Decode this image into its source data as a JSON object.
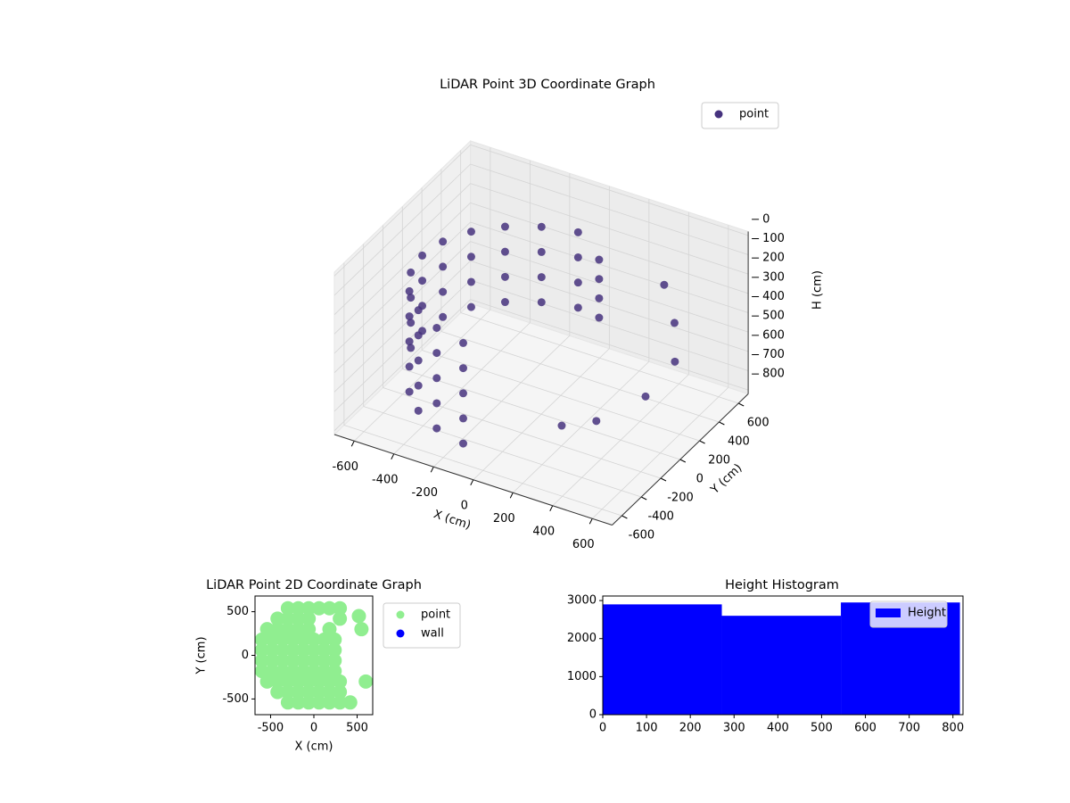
{
  "chart_data": [
    {
      "type": "scatter3d",
      "title": "LiDAR Point 3D Coordinate Graph",
      "xlabel": "X (cm)",
      "ylabel": "Y (cm)",
      "zlabel": "H (cm)",
      "xlim": [
        -700,
        700
      ],
      "ylim": [
        -700,
        700
      ],
      "zlim": [
        820,
        -20
      ],
      "xticks": [
        -600,
        -400,
        -200,
        0,
        200,
        400,
        600
      ],
      "yticks": [
        -600,
        -400,
        -200,
        0,
        200,
        400,
        600
      ],
      "zticks": [
        0,
        100,
        200,
        300,
        400,
        500,
        600,
        700,
        800
      ],
      "grid": true,
      "legend": "upper-right",
      "series": [
        {
          "name": "point",
          "color": "#46327e",
          "x": [
            -104,
            -104,
            -104,
            -104,
            -263,
            -263,
            -263,
            -263,
            -401,
            -401,
            -401,
            -401,
            -509,
            -509,
            -509,
            -509,
            -577,
            -577,
            -577,
            -577,
            -600,
            -600,
            -600,
            -600,
            -577,
            -577,
            -577,
            -577,
            -509,
            -509,
            -509,
            -509,
            -401,
            -401,
            -401,
            -401,
            -263,
            -263,
            -263,
            -263,
            -104,
            -104,
            -104,
            -104,
            -509,
            -401,
            -263,
            -104,
            120,
            120,
            120,
            120,
            350,
            500,
            600,
            550,
            400,
            250
          ],
          "y": [
            591,
            591,
            591,
            591,
            539,
            539,
            539,
            539,
            446,
            446,
            446,
            446,
            318,
            318,
            318,
            318,
            165,
            165,
            165,
            165,
            0,
            0,
            0,
            0,
            -165,
            -165,
            -165,
            -165,
            -318,
            -318,
            -318,
            -318,
            -446,
            -446,
            -446,
            -446,
            -539,
            -539,
            -539,
            -539,
            -591,
            -591,
            -591,
            -591,
            -318,
            -446,
            -539,
            -591,
            350,
            350,
            350,
            350,
            550,
            350,
            150,
            -50,
            -250,
            -300
          ],
          "z": [
            200,
            330,
            460,
            590,
            200,
            330,
            460,
            590,
            200,
            330,
            460,
            590,
            200,
            330,
            460,
            590,
            200,
            330,
            460,
            590,
            200,
            330,
            460,
            590,
            200,
            330,
            460,
            590,
            200,
            330,
            460,
            590,
            200,
            330,
            460,
            590,
            200,
            330,
            460,
            590,
            200,
            330,
            460,
            590,
            720,
            720,
            720,
            720,
            150,
            250,
            350,
            450,
            300,
            350,
            420,
            520,
            600,
            650
          ]
        }
      ]
    },
    {
      "type": "scatter",
      "title": "LiDAR Point 2D Coordinate Graph",
      "xlabel": "X (cm)",
      "ylabel": "Y (cm)",
      "xlim": [
        -680,
        680
      ],
      "ylim": [
        -680,
        680
      ],
      "xticks": [
        -500,
        0,
        500
      ],
      "yticks": [
        -500,
        0,
        500
      ],
      "legend": "outside-right",
      "series": [
        {
          "name": "point",
          "color": "#90ee90",
          "x": [
            -300,
            -180,
            -60,
            60,
            180,
            300,
            -420,
            -300,
            -180,
            -60,
            300,
            -540,
            -420,
            -300,
            -180,
            -60,
            180,
            -600,
            -480,
            -360,
            -240,
            -120,
            0,
            120,
            240,
            -600,
            -480,
            -360,
            -240,
            -120,
            0,
            120,
            240,
            -600,
            -480,
            -360,
            -240,
            -120,
            0,
            120,
            240,
            -600,
            -480,
            -360,
            -240,
            -120,
            0,
            120,
            240,
            -540,
            -420,
            -300,
            -180,
            -60,
            60,
            180,
            300,
            600,
            -420,
            -300,
            -180,
            -60,
            60,
            180,
            300,
            -300,
            -180,
            -60,
            60,
            180,
            300,
            420,
            550,
            520
          ],
          "y": [
            540,
            540,
            540,
            540,
            540,
            540,
            420,
            420,
            420,
            420,
            420,
            300,
            300,
            300,
            300,
            300,
            300,
            180,
            180,
            180,
            180,
            180,
            180,
            180,
            180,
            60,
            60,
            60,
            60,
            60,
            60,
            60,
            60,
            -60,
            -60,
            -60,
            -60,
            -60,
            -60,
            -60,
            -60,
            -180,
            -180,
            -180,
            -180,
            -180,
            -180,
            -180,
            -180,
            -300,
            -300,
            -300,
            -300,
            -300,
            -300,
            -300,
            -300,
            -300,
            -420,
            -420,
            -420,
            -420,
            -420,
            -420,
            -420,
            -540,
            -540,
            -540,
            -540,
            -540,
            -540,
            -540,
            300,
            450
          ]
        },
        {
          "name": "wall",
          "color": "#0000ff",
          "x": [],
          "y": []
        }
      ]
    },
    {
      "type": "histogram",
      "title": "Height Histogram",
      "bins": [
        0,
        272,
        544,
        816
      ],
      "xlim": [
        0,
        823
      ],
      "ylim": [
        0,
        3120
      ],
      "xticks": [
        0,
        100,
        200,
        300,
        400,
        500,
        600,
        700,
        800
      ],
      "yticks": [
        0,
        1000,
        2000,
        3000
      ],
      "legend": "upper-right",
      "series": [
        {
          "name": "Height",
          "color": "#0000ff",
          "values": [
            2900,
            2600,
            2950
          ]
        }
      ]
    }
  ]
}
